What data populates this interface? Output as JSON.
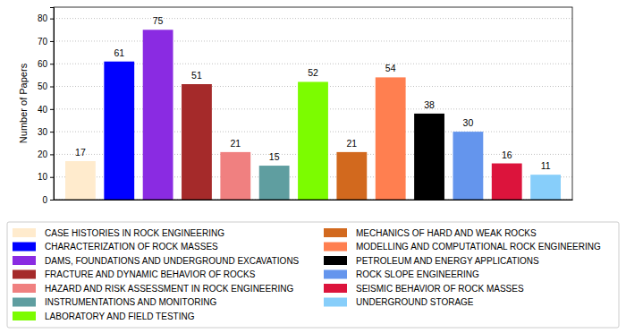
{
  "chart_data": {
    "type": "bar",
    "y_label": "Number of Papers",
    "categories": [
      "CASE HISTORIES IN ROCK ENGINEERING",
      "CHARACTERIZATION OF ROCK MASSES",
      "DAMS, FOUNDATIONS AND UNDERGROUND EXCAVATIONS",
      "FRACTURE AND DYNAMIC BEHAVIOR OF ROCKS",
      "HAZARD AND RISK ASSESSMENT IN ROCK ENGINEERING",
      "INSTRUMENTATIONS AND MONITORING",
      "LABORATORY AND FIELD TESTING",
      "MECHANICS OF HARD AND WEAK ROCKS",
      "MODELLING AND COMPUTATIONAL ROCK ENGINEERING",
      "PETROLEUM AND ENERGY APPLICATIONS",
      "ROCK SLOPE ENGINEERING",
      "SEISMIC BEHAVIOR OF ROCK MASSES",
      "UNDERGROUND STORAGE"
    ],
    "values": [
      17,
      61,
      75,
      51,
      21,
      15,
      52,
      21,
      54,
      38,
      30,
      16,
      11
    ],
    "colors": [
      "#ffebcd",
      "#0000ff",
      "#8a2be2",
      "#a52a2a",
      "#f08080",
      "#5f9ea0",
      "#7cfc00",
      "#d2691e",
      "#ff7f50",
      "#000000",
      "#6495ed",
      "#dc143c",
      "#87cefa"
    ],
    "ylim": [
      0,
      85
    ],
    "yticks": [
      0,
      10,
      20,
      30,
      40,
      50,
      60,
      70,
      80
    ],
    "grid": true,
    "data_labels": true,
    "tick_labels": "y",
    "legend": "bottom"
  }
}
